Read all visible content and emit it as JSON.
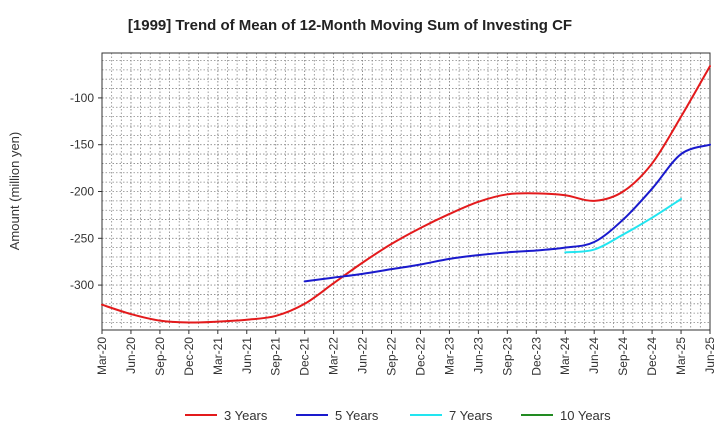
{
  "chart_data": {
    "type": "line",
    "title": "[1999]  Trend of Mean of 12-Month Moving Sum of Investing CF",
    "xlabel": "",
    "ylabel": "Amount (million yen)",
    "ylim": [
      -348,
      -52
    ],
    "yticks": [
      -100,
      -150,
      -200,
      -250,
      -300
    ],
    "categories": [
      "Mar-20",
      "Jun-20",
      "Sep-20",
      "Dec-20",
      "Mar-21",
      "Jun-21",
      "Sep-21",
      "Dec-21",
      "Mar-22",
      "Jun-22",
      "Sep-22",
      "Dec-22",
      "Mar-23",
      "Jun-23",
      "Sep-23",
      "Dec-23",
      "Mar-24",
      "Jun-24",
      "Sep-24",
      "Dec-24",
      "Mar-25",
      "Jun-25"
    ],
    "grid": true,
    "legend_position": "bottom",
    "series": [
      {
        "name": "3 Years",
        "color": "#e31a1c",
        "values": [
          -321,
          -331,
          -338,
          -340,
          -339,
          -337,
          -333,
          -320,
          -298,
          -276,
          -256,
          -239,
          -224,
          -211,
          -203,
          -202,
          -204,
          -210,
          -200,
          -170,
          -120,
          -66
        ]
      },
      {
        "name": "5 Years",
        "color": "#1a1acd",
        "values": [
          null,
          null,
          null,
          null,
          null,
          null,
          null,
          -296,
          -292,
          -288,
          -283,
          -278,
          -272,
          -268,
          -265,
          -263,
          -260,
          -254,
          -230,
          -197,
          -160,
          -150
        ]
      },
      {
        "name": "7 Years",
        "color": "#22e5f0",
        "values": [
          null,
          null,
          null,
          null,
          null,
          null,
          null,
          null,
          null,
          null,
          null,
          null,
          null,
          null,
          null,
          null,
          -265,
          -262,
          -246,
          -228,
          -208,
          null
        ]
      },
      {
        "name": "10 Years",
        "color": "#228b22",
        "values": [
          null,
          null,
          null,
          null,
          null,
          null,
          null,
          null,
          null,
          null,
          null,
          null,
          null,
          null,
          null,
          null,
          null,
          null,
          null,
          null,
          null,
          null
        ]
      }
    ]
  }
}
